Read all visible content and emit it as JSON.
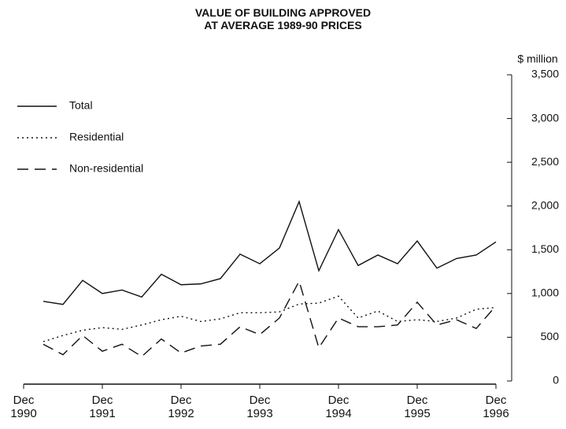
{
  "chart_data": {
    "type": "line",
    "title": "VALUE OF BUILDING APPROVED\nAT AVERAGE 1989-90 PRICES",
    "y_axis_label": "$ million",
    "categories": [
      "Dec\n1990",
      null,
      null,
      null,
      "Dec\n1991",
      null,
      null,
      null,
      "Dec\n1992",
      null,
      null,
      null,
      "Dec\n1993",
      null,
      null,
      null,
      "Dec\n1994",
      null,
      null,
      null,
      "Dec\n1995",
      null,
      null,
      null,
      "Dec\n1996"
    ],
    "series": [
      {
        "name": "Total",
        "color": "#111111",
        "dash": "solid",
        "values": [
          null,
          910,
          875,
          1150,
          1000,
          1040,
          960,
          1220,
          1100,
          1110,
          1170,
          1450,
          1340,
          1520,
          2050,
          1260,
          1730,
          1320,
          1440,
          1340,
          1600,
          1290,
          1400,
          1440,
          1590
        ]
      },
      {
        "name": "Residential",
        "color": "#111111",
        "dash": "dotted",
        "values": [
          null,
          450,
          520,
          580,
          610,
          590,
          640,
          700,
          740,
          680,
          710,
          780,
          780,
          790,
          880,
          890,
          970,
          720,
          800,
          680,
          700,
          680,
          720,
          820,
          840
        ]
      },
      {
        "name": "Non-residential",
        "color": "#111111",
        "dash": "dashed",
        "values": [
          null,
          420,
          300,
          520,
          340,
          420,
          280,
          480,
          320,
          400,
          420,
          620,
          530,
          720,
          1140,
          380,
          720,
          620,
          620,
          640,
          900,
          640,
          700,
          600,
          860
        ]
      }
    ],
    "ylim": [
      0,
      3500
    ],
    "yticks": [
      0,
      500,
      {
        "value": 1000,
        "label": "1,000"
      },
      {
        "value": 1500,
        "label": "1,500"
      },
      {
        "value": 2000,
        "label": "2,000"
      },
      {
        "value": 2500,
        "label": "2,500"
      },
      {
        "value": 3000,
        "label": "3,000"
      },
      {
        "value": 3500,
        "label": "3,500"
      }
    ],
    "legend": "upper left",
    "grid": false
  }
}
